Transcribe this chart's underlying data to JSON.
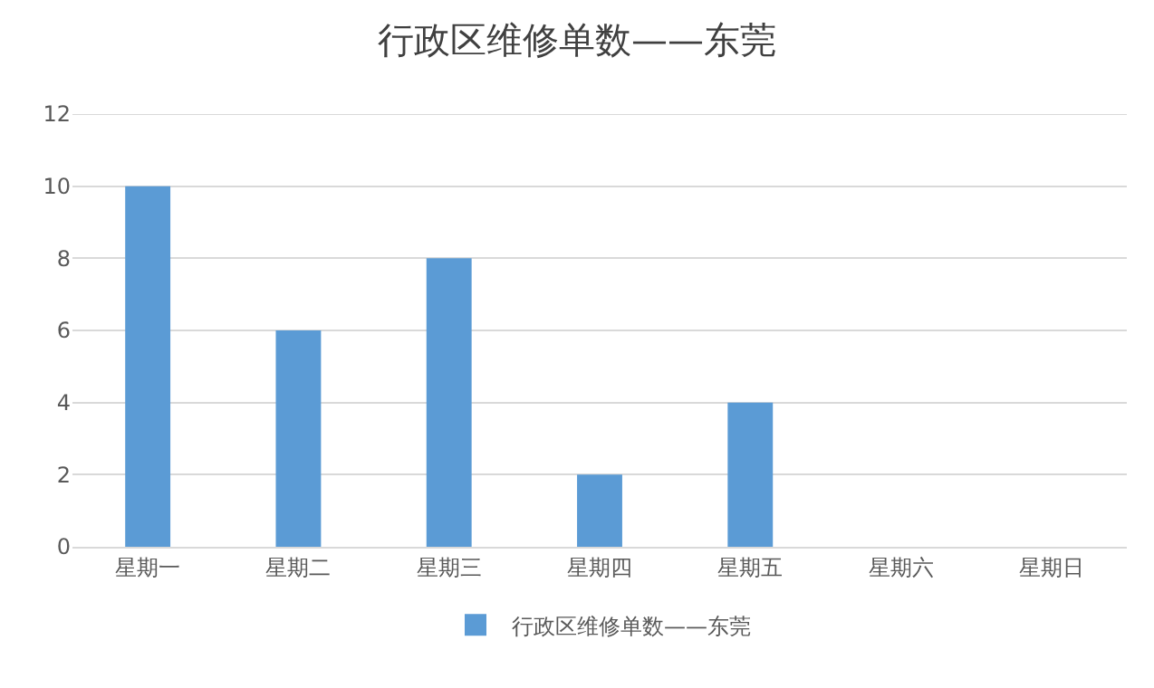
{
  "chart_data": {
    "type": "bar",
    "title": "行政区维修单数——东莞",
    "categories": [
      "星期一",
      "星期二",
      "星期三",
      "星期四",
      "星期五",
      "星期六",
      "星期日"
    ],
    "series": [
      {
        "name": "行政区维修单数——东莞",
        "color": "#5b9bd5",
        "values": [
          10,
          6,
          8,
          2,
          4,
          0,
          0
        ]
      }
    ],
    "ylim": [
      0,
      12
    ],
    "yticks": [
      0,
      2,
      4,
      6,
      8,
      10,
      12
    ],
    "grid": "y",
    "legend": "bottom"
  }
}
